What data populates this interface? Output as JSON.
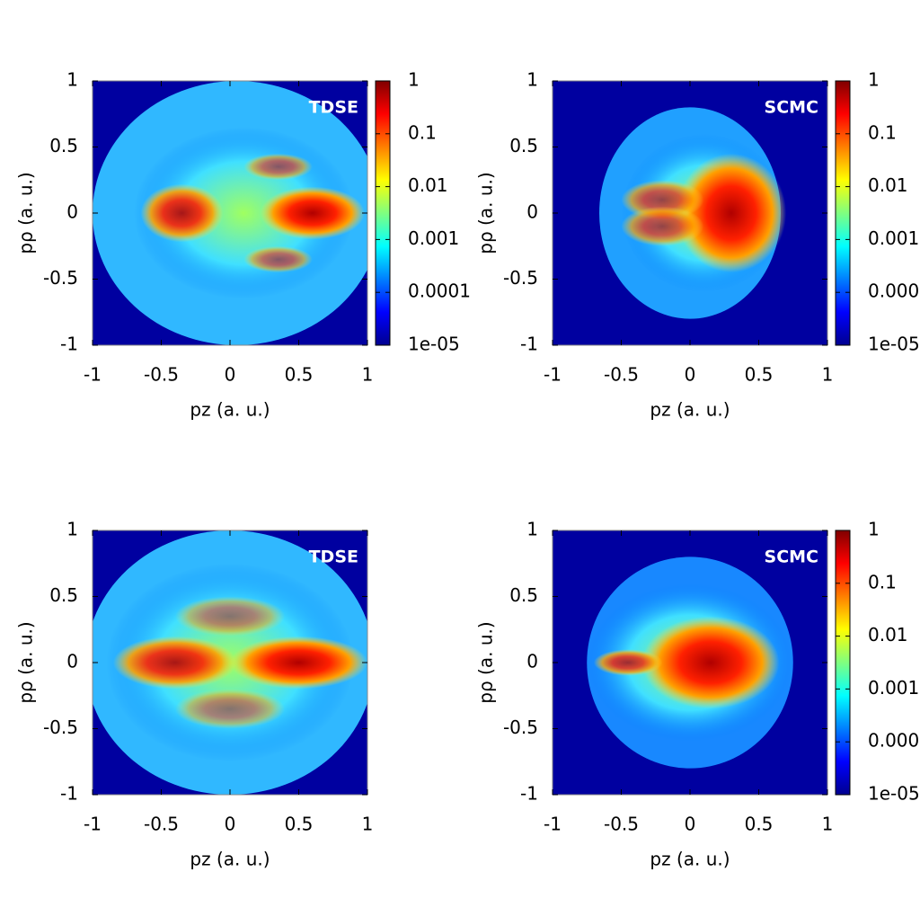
{
  "chart_data": [
    {
      "type": "heatmap",
      "label": "TDSE",
      "xlabel": "pz (a. u.)",
      "ylabel": "pρ (a. u.)",
      "xlim": [
        -1,
        1
      ],
      "ylim": [
        -1,
        1
      ],
      "xticks": [
        -1,
        -0.5,
        0,
        0.5,
        1
      ],
      "yticks": [
        -1,
        -0.5,
        0,
        0.5,
        1
      ],
      "colorbar": {
        "scale": "log",
        "clim": [
          1e-05,
          1
        ],
        "ticks": [
          1,
          0.1,
          0.01,
          0.001,
          0.0001,
          {
            "value": 1e-05,
            "label": "1e-05"
          }
        ]
      }
    },
    {
      "type": "heatmap",
      "label": "SCMC",
      "xlabel": "pz (a. u.)",
      "ylabel": "pρ (a. u.)",
      "xlim": [
        -1,
        1
      ],
      "ylim": [
        -1,
        1
      ],
      "xticks": [
        -1,
        -0.5,
        0,
        0.5,
        1
      ],
      "yticks": [
        -1,
        -0.5,
        0,
        0.5,
        1
      ],
      "colorbar": {
        "scale": "log",
        "clim": [
          1e-05,
          1
        ],
        "ticks": [
          1,
          0.1,
          0.01,
          0.001,
          0.0001,
          {
            "value": 1e-05,
            "label": "1e-05"
          }
        ]
      }
    },
    {
      "type": "heatmap",
      "label": "TDSE",
      "xlabel": "pz (a. u.)",
      "ylabel": "pρ (a. u.)",
      "xlim": [
        -1,
        1
      ],
      "ylim": [
        -1,
        1
      ],
      "xticks": [
        -1,
        -0.5,
        0,
        0.5,
        1
      ],
      "yticks": [
        -1,
        -0.5,
        0,
        0.5,
        1
      ]
    },
    {
      "type": "heatmap",
      "label": "SCMC",
      "xlabel": "pz (a. u.)",
      "ylabel": "pρ (a. u.)",
      "xlim": [
        -1,
        1
      ],
      "ylim": [
        -1,
        1
      ],
      "xticks": [
        -1,
        -0.5,
        0,
        0.5,
        1
      ],
      "yticks": [
        -1,
        -0.5,
        0,
        0.5,
        1
      ],
      "colorbar": {
        "scale": "log",
        "clim": [
          1e-05,
          1
        ],
        "ticks": [
          1,
          0.1,
          0.01,
          0.001,
          0.0001,
          {
            "value": 1e-05,
            "label": "1e-05"
          }
        ]
      }
    }
  ]
}
